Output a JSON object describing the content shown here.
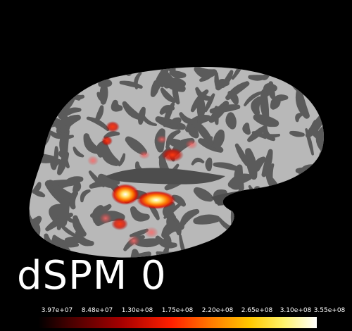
{
  "overlay_label": "dSPM 0",
  "colorbar": {
    "ticks": [
      "3.97e+07",
      "8.48e+07",
      "1.30e+08",
      "1.75e+08",
      "2.20e+08",
      "2.65e+08",
      "3.10e+08",
      "3.55e+08"
    ],
    "colors": [
      "#000000",
      "#a60000",
      "#ff2000",
      "#ff7a00",
      "#ffc800",
      "#ffffff"
    ]
  },
  "background_color": "#000000",
  "brain_colors": {
    "gyri": "#b9b9b9",
    "sulci": "#5a5a5a"
  }
}
